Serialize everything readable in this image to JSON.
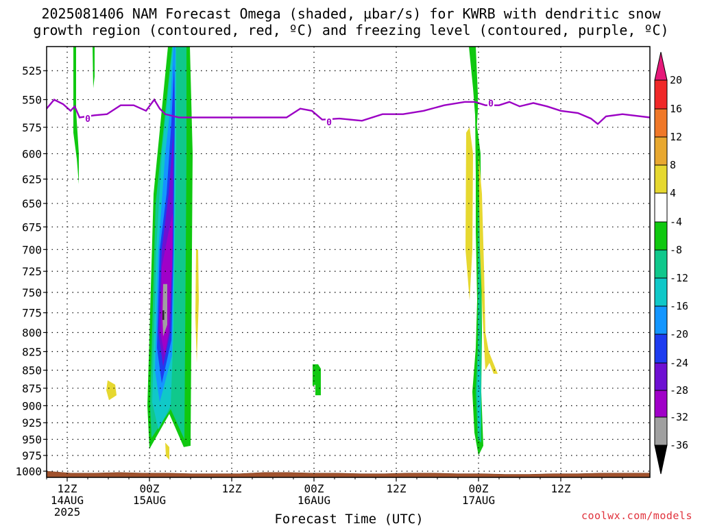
{
  "title": {
    "line1": "2025081406 NAM Forecast Omega (shaded, µbar/s) for KWRB with dendritic snow",
    "line2": "growth region (contoured, red, ºC) and freezing level (contoured, purple, ºC)"
  },
  "footer": {
    "credit": "coolwx.com/models"
  },
  "chart_data": {
    "type": "heatmap",
    "xlabel": "Forecast Time (UTC)",
    "ylabel": "",
    "x_range_hours": [
      -15,
      73
    ],
    "y_range_mb": [
      1010,
      505
    ],
    "y_scale": "log-pressure",
    "y_ticks": [
      525,
      550,
      575,
      600,
      625,
      650,
      675,
      700,
      725,
      750,
      775,
      800,
      825,
      850,
      875,
      900,
      925,
      950,
      975,
      1000
    ],
    "x_ticks": [
      {
        "hour": -12,
        "lines": [
          "12Z",
          "14AUG",
          "2025"
        ]
      },
      {
        "hour": 0,
        "lines": [
          "00Z",
          "15AUG"
        ]
      },
      {
        "hour": 12,
        "lines": [
          "12Z"
        ]
      },
      {
        "hour": 24,
        "lines": [
          "00Z",
          "16AUG"
        ]
      },
      {
        "hour": 36,
        "lines": [
          "12Z"
        ]
      },
      {
        "hour": 48,
        "lines": [
          "00Z",
          "17AUG"
        ]
      },
      {
        "hour": 60,
        "lines": [
          "12Z"
        ]
      }
    ],
    "grid": true,
    "colorbar": {
      "levels": [
        20,
        16,
        12,
        8,
        4,
        -4,
        -8,
        -12,
        -16,
        -20,
        -24,
        -28,
        -32,
        -36
      ],
      "bins": [
        {
          "from": 16,
          "to": 20,
          "color": "#f02828"
        },
        {
          "from": 12,
          "to": 16,
          "color": "#f07828"
        },
        {
          "from": 8,
          "to": 12,
          "color": "#e8a830"
        },
        {
          "from": 4,
          "to": 8,
          "color": "#e6d830"
        },
        {
          "from": -4,
          "to": 4,
          "color": "#ffffff"
        },
        {
          "from": -8,
          "to": -4,
          "color": "#10c810"
        },
        {
          "from": -12,
          "to": -8,
          "color": "#10c88c"
        },
        {
          "from": -16,
          "to": -12,
          "color": "#10c8c8"
        },
        {
          "from": -20,
          "to": -16,
          "color": "#1496ff"
        },
        {
          "from": -24,
          "to": -20,
          "color": "#1e3cf0"
        },
        {
          "from": -28,
          "to": -24,
          "color": "#6e10d2"
        },
        {
          "from": -32,
          "to": -28,
          "color": "#a000c8"
        },
        {
          "from": -36,
          "to": -32,
          "color": "#a0a0a0"
        }
      ],
      "top_arrow_color": "#e6197a",
      "bottom_arrow_color": "#000000"
    },
    "freezing_level": {
      "label": "0",
      "color": "#9b00c4",
      "points": [
        [
          -15.0,
          558
        ],
        [
          -13.9,
          550
        ],
        [
          -12.6,
          554
        ],
        [
          -11.5,
          560
        ],
        [
          -10.9,
          556
        ],
        [
          -10.2,
          566
        ],
        [
          -8.0,
          564
        ],
        [
          -6.2,
          563
        ],
        [
          -4.2,
          555
        ],
        [
          -2.3,
          555
        ],
        [
          -0.5,
          560
        ],
        [
          0.7,
          550
        ],
        [
          1.5,
          558
        ],
        [
          2.3,
          563
        ],
        [
          4.3,
          566
        ],
        [
          8.0,
          566
        ],
        [
          12.0,
          566
        ],
        [
          16.0,
          566
        ],
        [
          20.0,
          566
        ],
        [
          22.0,
          558
        ],
        [
          23.7,
          560
        ],
        [
          25.2,
          568
        ],
        [
          27.7,
          567
        ],
        [
          31.0,
          569
        ],
        [
          34.0,
          563
        ],
        [
          37.0,
          563
        ],
        [
          40.0,
          560
        ],
        [
          43.0,
          555
        ],
        [
          46.0,
          552
        ],
        [
          47.5,
          552
        ],
        [
          49.0,
          555
        ],
        [
          51.0,
          555
        ],
        [
          52.5,
          552
        ],
        [
          54.0,
          556
        ],
        [
          56.0,
          553
        ],
        [
          58.0,
          556
        ],
        [
          60.0,
          560
        ],
        [
          62.5,
          562
        ],
        [
          64.4,
          567
        ],
        [
          65.4,
          572
        ],
        [
          66.6,
          565
        ],
        [
          69.0,
          563
        ],
        [
          73.0,
          566
        ]
      ],
      "label_positions": [
        [
          -9.0,
          567
        ],
        [
          26.2,
          570
        ],
        [
          49.8,
          553
        ]
      ]
    },
    "regions": [
      {
        "name": "omega-band-a-green-strip-1",
        "color": "#10c810",
        "points": [
          [
            -11.1,
            505
          ],
          [
            -10.7,
            505
          ],
          [
            -10.7,
            560
          ],
          [
            -10.3,
            600
          ],
          [
            -10.3,
            630
          ],
          [
            -10.6,
            605
          ],
          [
            -11.1,
            580
          ]
        ]
      },
      {
        "name": "omega-band-a-green-strip-2",
        "color": "#10c810",
        "points": [
          [
            -8.3,
            505
          ],
          [
            -8.0,
            505
          ],
          [
            -8.0,
            530
          ],
          [
            -8.2,
            540
          ]
        ]
      },
      {
        "name": "omega-band-a-yellow-blob",
        "color": "#e6d830",
        "points": [
          [
            -6.1,
            864
          ],
          [
            -5.0,
            870
          ],
          [
            -4.8,
            885
          ],
          [
            -5.9,
            892
          ],
          [
            -6.3,
            878
          ]
        ]
      },
      {
        "name": "omega-band-b-green",
        "color": "#10c810",
        "points": [
          [
            2.7,
            505
          ],
          [
            5.9,
            505
          ],
          [
            6.3,
            600
          ],
          [
            6.0,
            960
          ],
          [
            5.0,
            962
          ],
          [
            2.9,
            912
          ],
          [
            0.0,
            965
          ],
          [
            -0.3,
            900
          ],
          [
            0.6,
            640
          ]
        ]
      },
      {
        "name": "omega-band-b-teal",
        "color": "#10c88c",
        "points": [
          [
            3.3,
            505
          ],
          [
            5.4,
            505
          ],
          [
            5.4,
            600
          ],
          [
            5.1,
            950
          ],
          [
            3.1,
            905
          ],
          [
            0.3,
            948
          ],
          [
            0.1,
            900
          ],
          [
            0.9,
            650
          ]
        ]
      },
      {
        "name": "omega-band-b-cyan",
        "color": "#10c8c8",
        "points": [
          [
            3.4,
            505
          ],
          [
            3.9,
            505
          ],
          [
            3.9,
            600
          ],
          [
            3.5,
            800
          ],
          [
            3.1,
            900
          ],
          [
            1.3,
            935
          ],
          [
            0.4,
            895
          ],
          [
            1.0,
            700
          ],
          [
            1.8,
            600
          ]
        ]
      },
      {
        "name": "omega-band-b-lightblue",
        "color": "#1496ff",
        "points": [
          [
            3.5,
            505
          ],
          [
            3.8,
            505
          ],
          [
            3.7,
            560
          ],
          [
            3.6,
            700
          ],
          [
            3.3,
            830
          ],
          [
            1.5,
            895
          ],
          [
            0.8,
            850
          ],
          [
            1.3,
            700
          ],
          [
            2.3,
            600
          ],
          [
            3.0,
            560
          ]
        ]
      },
      {
        "name": "omega-band-b-blue",
        "color": "#1e3cf0",
        "points": [
          [
            3.6,
            520
          ],
          [
            3.7,
            560
          ],
          [
            3.5,
            700
          ],
          [
            3.2,
            810
          ],
          [
            1.8,
            868
          ],
          [
            1.1,
            820
          ],
          [
            1.5,
            700
          ],
          [
            2.5,
            640
          ],
          [
            3.2,
            570
          ]
        ]
      },
      {
        "name": "omega-band-b-indigo",
        "color": "#6e10d2",
        "points": [
          [
            3.5,
            580
          ],
          [
            3.4,
            700
          ],
          [
            3.0,
            800
          ],
          [
            2.0,
            845
          ],
          [
            1.3,
            800
          ],
          [
            1.8,
            700
          ],
          [
            2.8,
            640
          ]
        ]
      },
      {
        "name": "omega-band-b-purple",
        "color": "#a000c8",
        "points": [
          [
            3.4,
            660
          ],
          [
            3.3,
            720
          ],
          [
            2.8,
            800
          ],
          [
            2.2,
            830
          ],
          [
            1.6,
            800
          ],
          [
            1.8,
            720
          ],
          [
            2.8,
            680
          ]
        ]
      },
      {
        "name": "omega-band-b-gray",
        "color": "#a0a0a0",
        "points": [
          [
            2.0,
            740
          ],
          [
            2.6,
            740
          ],
          [
            2.6,
            790
          ],
          [
            2.0,
            805
          ],
          [
            1.9,
            780
          ]
        ]
      },
      {
        "name": "omega-band-b-core",
        "color": "#2a2a2a",
        "points": [
          [
            1.9,
            772
          ],
          [
            2.15,
            772
          ],
          [
            2.15,
            784
          ],
          [
            1.9,
            784
          ]
        ]
      },
      {
        "name": "omega-band-b-yellow-strip-1",
        "color": "#e6d830",
        "points": [
          [
            6.8,
            700
          ],
          [
            7.1,
            700
          ],
          [
            7.2,
            760
          ],
          [
            6.9,
            840
          ],
          [
            6.7,
            780
          ]
        ]
      },
      {
        "name": "omega-band-b-yellow-strip-2",
        "color": "#e6d830",
        "points": [
          [
            2.3,
            955
          ],
          [
            2.9,
            962
          ],
          [
            2.9,
            982
          ],
          [
            2.4,
            976
          ]
        ]
      },
      {
        "name": "omega-band-c-green",
        "color": "#10c810",
        "points": [
          [
            23.8,
            842
          ],
          [
            24.6,
            842
          ],
          [
            25.0,
            848
          ],
          [
            25.0,
            885
          ],
          [
            24.2,
            885
          ],
          [
            24.2,
            870
          ],
          [
            23.8,
            872
          ]
        ]
      },
      {
        "name": "omega-band-d-yellow-strip",
        "color": "#e6d830",
        "points": [
          [
            46.2,
            580
          ],
          [
            46.7,
            575
          ],
          [
            47.2,
            600
          ],
          [
            47.1,
            700
          ],
          [
            46.7,
            760
          ],
          [
            46.1,
            700
          ]
        ]
      },
      {
        "name": "omega-band-d-green-top",
        "color": "#10c810",
        "points": [
          [
            46.6,
            505
          ],
          [
            47.6,
            505
          ],
          [
            47.9,
            545
          ],
          [
            47.9,
            560
          ],
          [
            47.7,
            580
          ],
          [
            47.2,
            540
          ]
        ]
      },
      {
        "name": "omega-band-d-green",
        "color": "#10c810",
        "points": [
          [
            47.5,
            560
          ],
          [
            48.3,
            600
          ],
          [
            48.4,
            700
          ],
          [
            48.5,
            800
          ],
          [
            48.4,
            880
          ],
          [
            48.7,
            960
          ],
          [
            48.0,
            975
          ],
          [
            47.4,
            940
          ],
          [
            47.1,
            880
          ],
          [
            47.6,
            820
          ],
          [
            47.8,
            760
          ],
          [
            47.6,
            680
          ],
          [
            47.6,
            620
          ]
        ]
      },
      {
        "name": "omega-band-d-teal",
        "color": "#10c88c",
        "points": [
          [
            48.0,
            640
          ],
          [
            48.3,
            720
          ],
          [
            48.4,
            820
          ],
          [
            48.4,
            900
          ],
          [
            48.4,
            955
          ],
          [
            47.9,
            950
          ],
          [
            47.6,
            880
          ],
          [
            47.9,
            820
          ],
          [
            47.9,
            740
          ]
        ]
      },
      {
        "name": "omega-band-d-cyan",
        "color": "#10c8c8",
        "points": [
          [
            48.0,
            830
          ],
          [
            48.3,
            860
          ],
          [
            48.3,
            930
          ],
          [
            48.0,
            940
          ],
          [
            47.8,
            880
          ]
        ]
      },
      {
        "name": "omega-band-d-yellow-right",
        "color": "#e6d830",
        "points": [
          [
            48.0,
            600
          ],
          [
            48.5,
            640
          ],
          [
            48.8,
            720
          ],
          [
            49.0,
            800
          ],
          [
            49.5,
            825
          ],
          [
            50.8,
            855
          ],
          [
            50.2,
            855
          ],
          [
            49.6,
            840
          ],
          [
            49.0,
            850
          ],
          [
            48.6,
            780
          ],
          [
            48.2,
            700
          ]
        ]
      }
    ],
    "terrain": {
      "color": "#a0522d",
      "top_mb": [
        1000,
        1003,
        1003,
        1002,
        1003,
        1003,
        1004,
        1004,
        1004,
        1002,
        1002,
        1003,
        1003,
        1004,
        1004,
        1003,
        1003,
        1004,
        1004,
        1005,
        1005,
        1004,
        1004,
        1003,
        1003,
        1003
      ]
    }
  }
}
